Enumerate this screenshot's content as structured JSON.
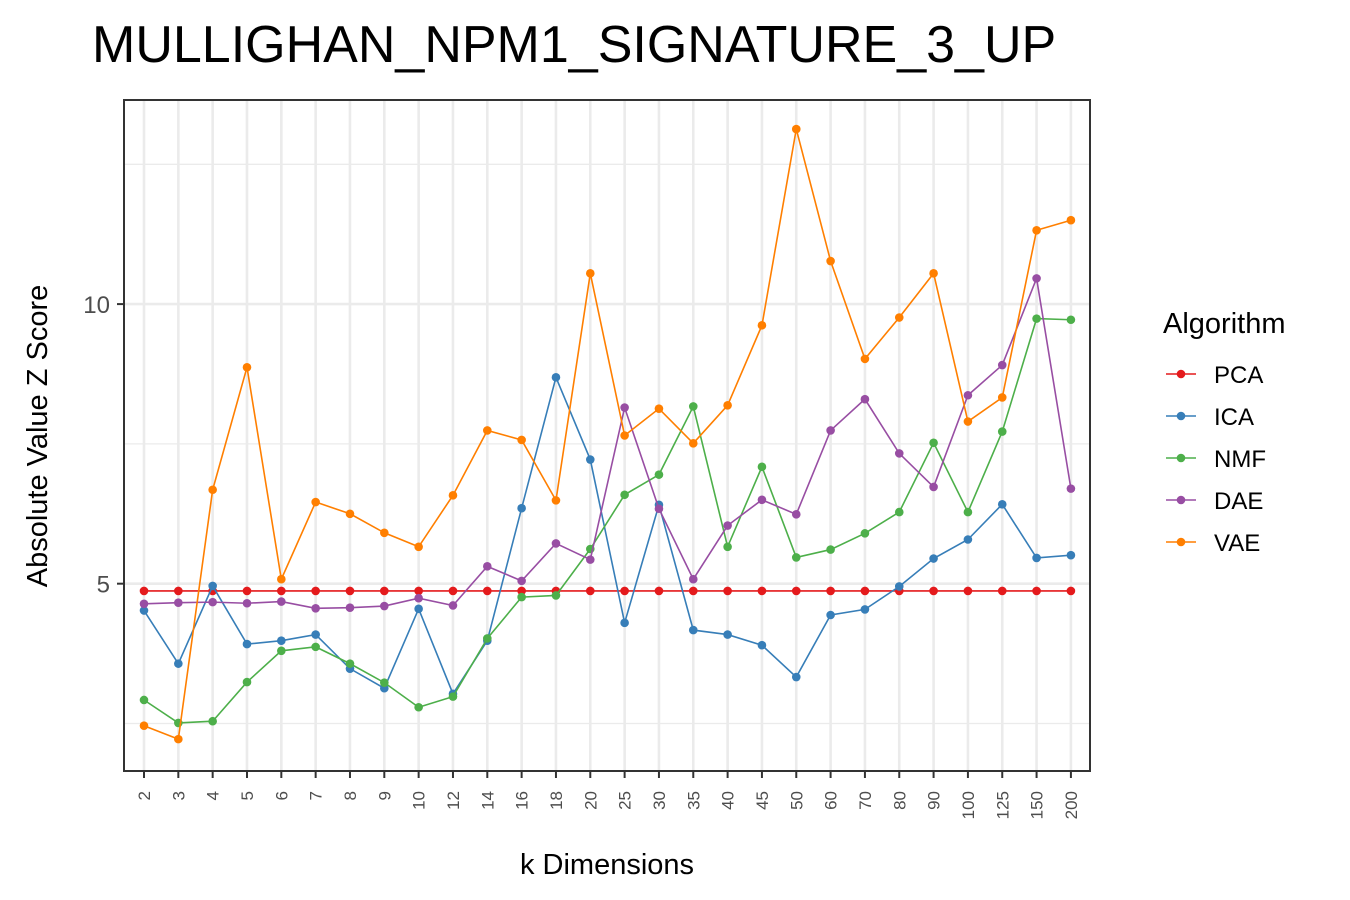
{
  "chart_data": {
    "type": "line",
    "title": "MULLIGHAN_NPM1_SIGNATURE_3_UP",
    "xlabel": "k Dimensions",
    "ylabel": "Absolute Value Z Score",
    "categories": [
      "2",
      "3",
      "4",
      "5",
      "6",
      "7",
      "8",
      "9",
      "10",
      "12",
      "14",
      "16",
      "18",
      "20",
      "25",
      "30",
      "35",
      "40",
      "45",
      "50",
      "60",
      "70",
      "80",
      "90",
      "100",
      "125",
      "150",
      "200"
    ],
    "y_ticks": [
      5,
      10
    ],
    "ylim": [
      1.65,
      13.65
    ],
    "grid": true,
    "legend_title": "Algorithm",
    "legend_position": "right",
    "series": [
      {
        "name": "PCA",
        "color": "#e41a1c",
        "values": [
          4.87,
          4.87,
          4.87,
          4.87,
          4.87,
          4.87,
          4.87,
          4.87,
          4.87,
          4.87,
          4.87,
          4.87,
          4.87,
          4.87,
          4.87,
          4.87,
          4.87,
          4.87,
          4.87,
          4.87,
          4.87,
          4.87,
          4.87,
          4.87,
          4.87,
          4.87,
          4.87,
          4.87
        ]
      },
      {
        "name": "ICA",
        "color": "#377eb8",
        "values": [
          4.52,
          3.57,
          4.96,
          3.92,
          3.98,
          4.09,
          3.48,
          3.13,
          4.55,
          3.03,
          3.98,
          6.35,
          8.69,
          7.22,
          4.3,
          6.41,
          4.17,
          4.09,
          3.9,
          3.33,
          4.44,
          4.54,
          4.95,
          5.45,
          5.79,
          6.42,
          5.46,
          5.51
        ]
      },
      {
        "name": "NMF",
        "color": "#4daf4a",
        "values": [
          2.92,
          2.51,
          2.54,
          3.24,
          3.8,
          3.87,
          3.57,
          3.23,
          2.79,
          2.98,
          4.02,
          4.76,
          4.79,
          5.62,
          6.59,
          6.95,
          8.17,
          5.66,
          7.09,
          5.47,
          5.61,
          5.9,
          6.28,
          7.52,
          6.28,
          7.72,
          9.74,
          9.72
        ]
      },
      {
        "name": "DAE",
        "color": "#984ea3",
        "values": [
          4.64,
          4.66,
          4.67,
          4.65,
          4.68,
          4.56,
          4.57,
          4.6,
          4.74,
          4.61,
          5.31,
          5.05,
          5.72,
          5.43,
          8.15,
          6.34,
          5.08,
          6.04,
          6.5,
          6.24,
          7.74,
          8.3,
          7.33,
          6.73,
          8.37,
          8.91,
          10.46,
          6.7
        ]
      },
      {
        "name": "VAE",
        "color": "#ff7f00",
        "values": [
          2.46,
          2.22,
          6.68,
          8.87,
          5.08,
          6.46,
          6.25,
          5.91,
          5.66,
          6.58,
          7.74,
          7.57,
          6.49,
          10.55,
          7.65,
          8.13,
          7.51,
          8.19,
          9.62,
          13.13,
          10.77,
          9.02,
          9.76,
          10.55,
          7.9,
          8.33,
          11.32,
          11.5
        ]
      }
    ]
  }
}
